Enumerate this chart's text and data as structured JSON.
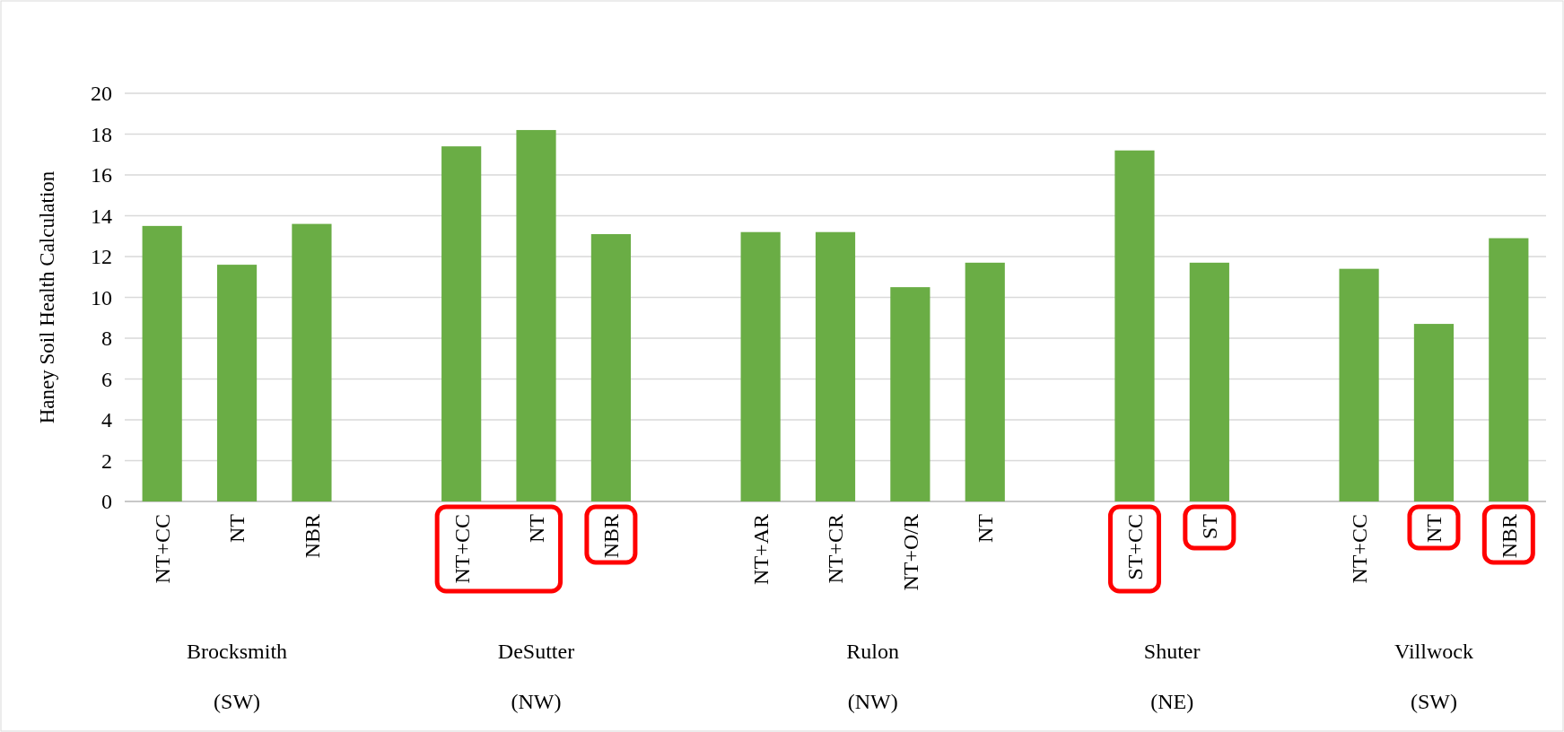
{
  "chart_data": {
    "type": "bar",
    "ylabel": "Haney Soil Health Calculation",
    "categories": [
      "NT+CC",
      "NT",
      "NBR",
      null,
      "NT+CC",
      "NT",
      "NBR",
      null,
      "NT+AR",
      "NT+CR",
      "NT+O/R",
      "NT",
      null,
      "ST+CC",
      "ST",
      null,
      "NT+CC",
      "NT",
      "NBR"
    ],
    "values": [
      13.5,
      11.6,
      13.6,
      null,
      17.4,
      18.2,
      13.1,
      null,
      13.2,
      13.2,
      10.5,
      11.7,
      null,
      17.2,
      11.7,
      null,
      11.4,
      8.7,
      12.9
    ],
    "color": "#6aad45",
    "ylim": [
      0,
      20
    ],
    "yticks": [
      0,
      2,
      4,
      6,
      8,
      10,
      12,
      14,
      16,
      18,
      20
    ],
    "grid": "y",
    "annotations": [
      "Brocksmith\n(SW)",
      "DeSutter\n(NW)",
      "Rulon\n(NW)",
      "Shuter\n(NE)",
      "Villwock\n(SW)"
    ]
  }
}
